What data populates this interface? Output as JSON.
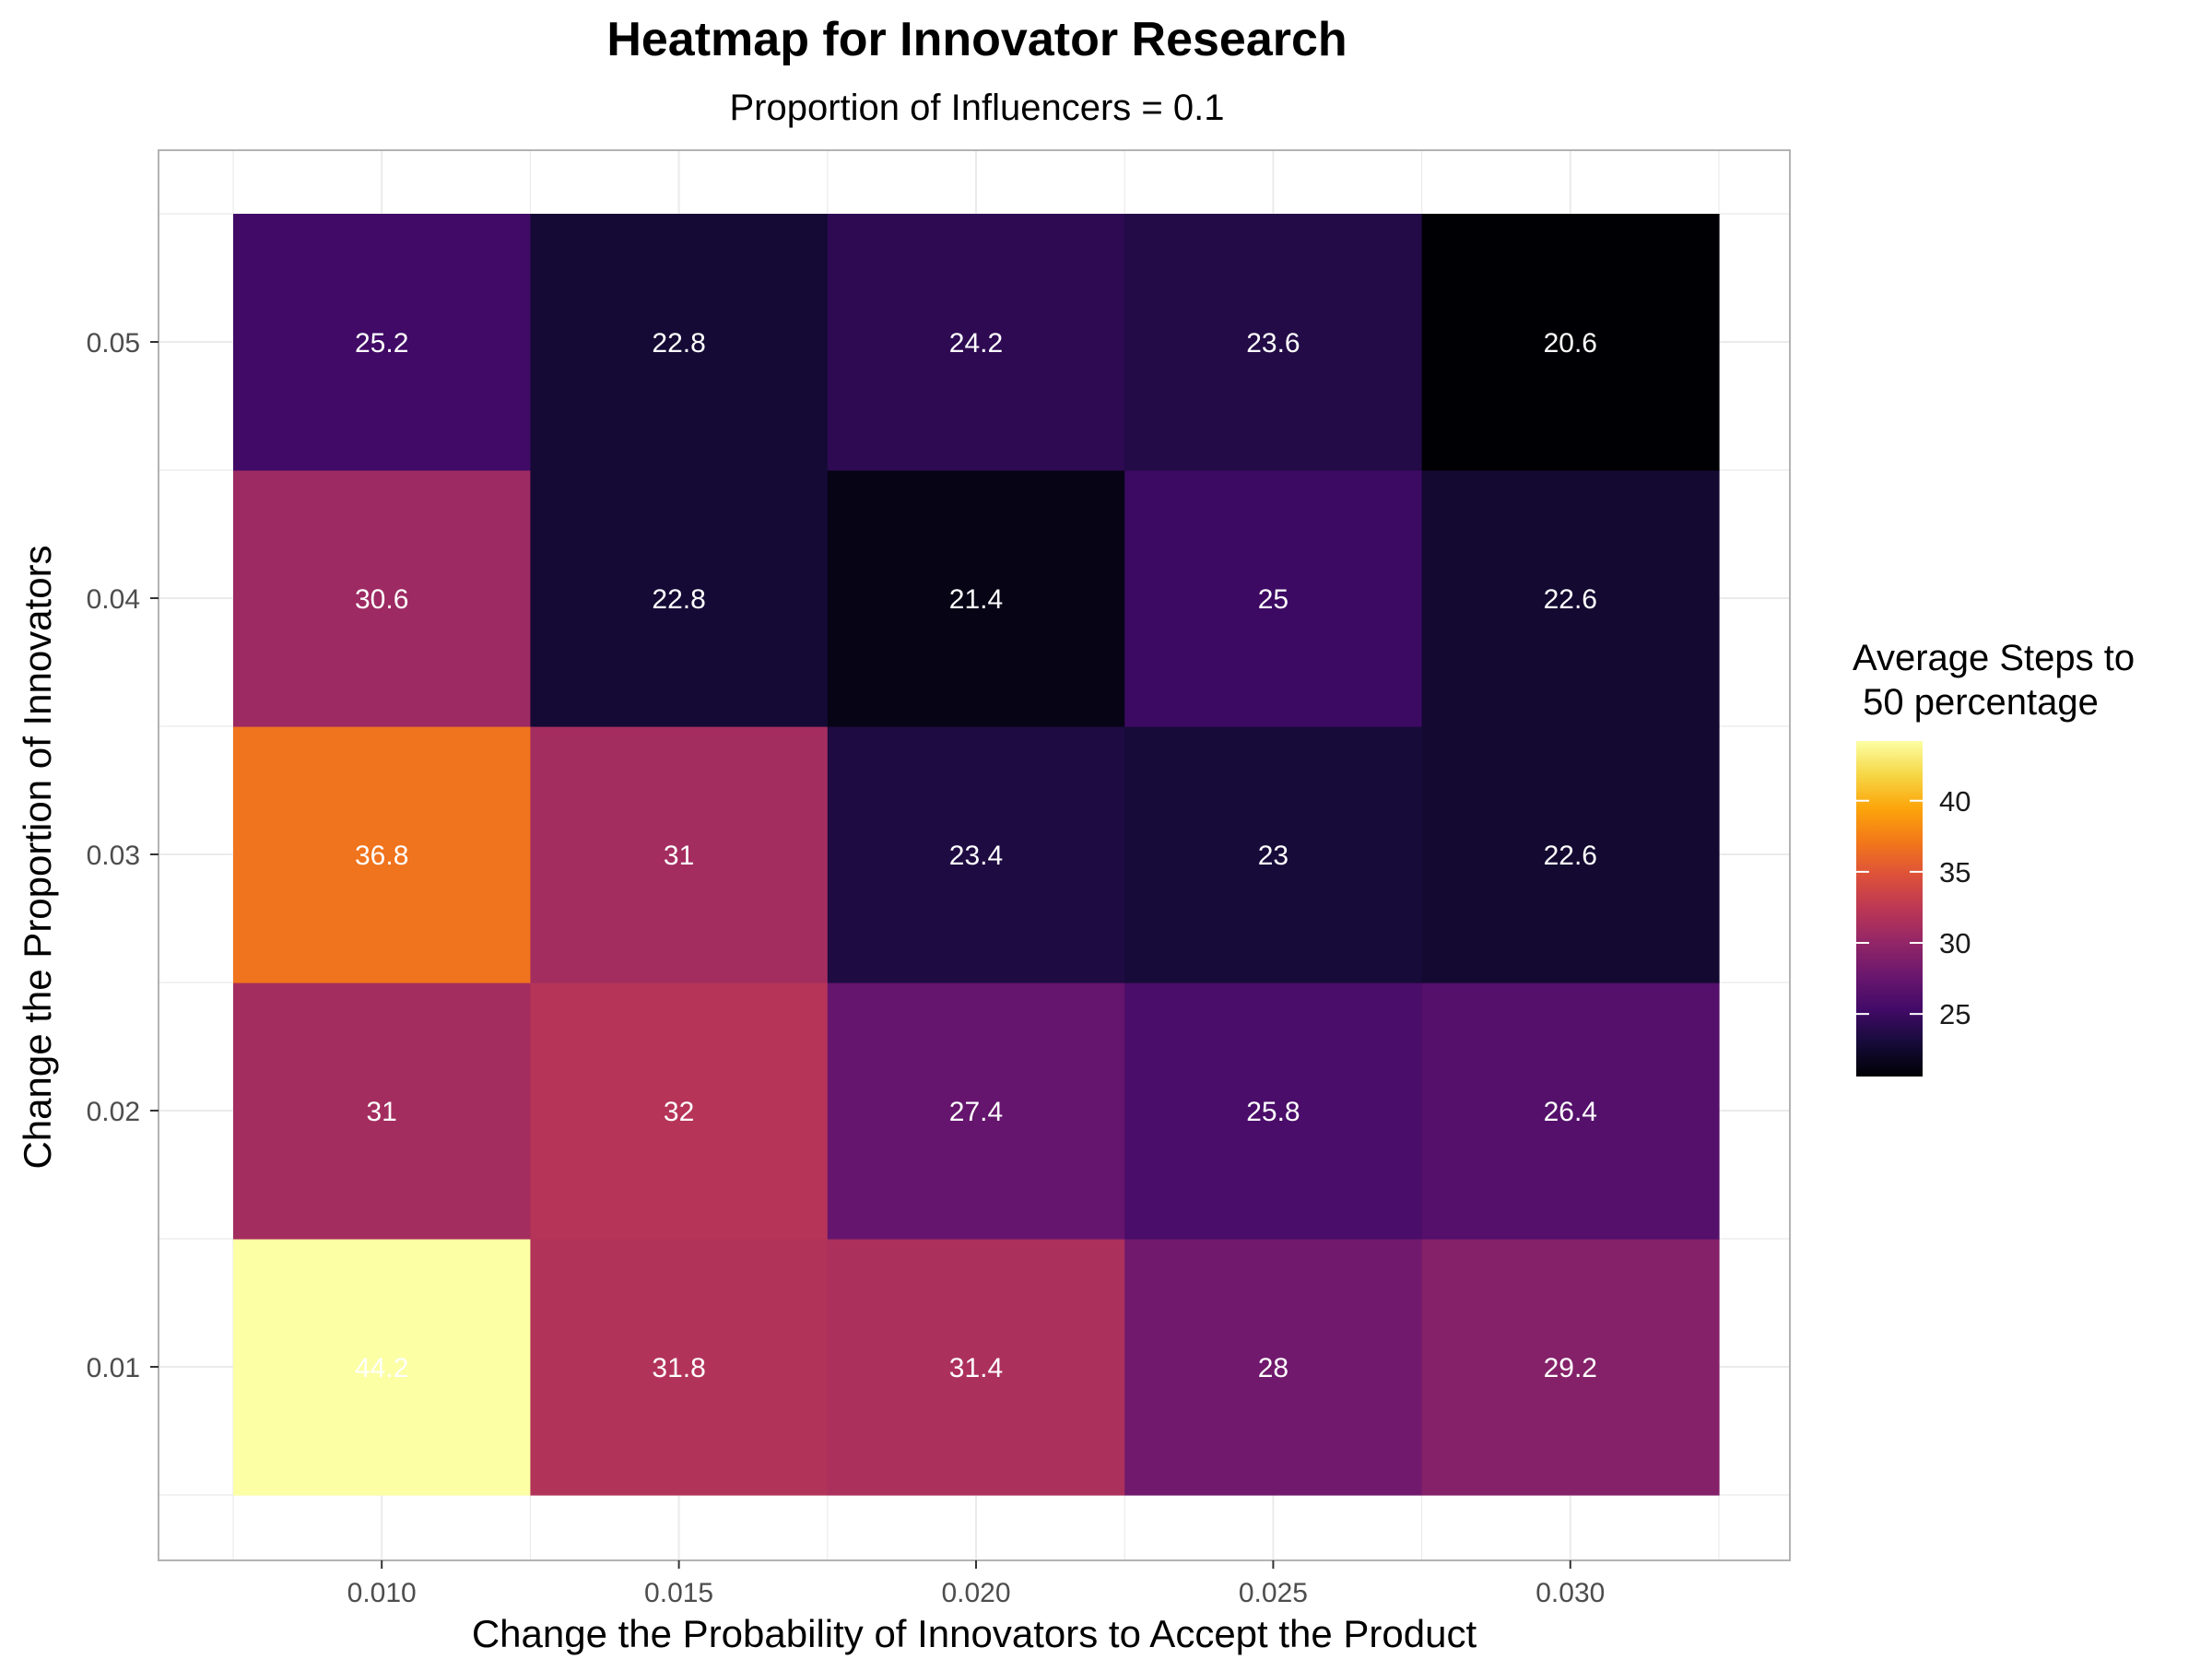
{
  "chart_data": {
    "type": "heatmap",
    "title": "Heatmap for Innovator Research",
    "subtitle": "Proportion of Influencers = 0.1",
    "xlabel": "Change the Probability of Innovators to Accept the Product",
    "ylabel": "Change the Proportion of Innovators",
    "x_categories": [
      "0.010",
      "0.015",
      "0.020",
      "0.025",
      "0.030"
    ],
    "y_categories": [
      "0.01",
      "0.02",
      "0.03",
      "0.04",
      "0.05"
    ],
    "values": [
      [
        44.2,
        31.8,
        31.4,
        28,
        29.2
      ],
      [
        31,
        32,
        27.4,
        25.8,
        26.4
      ],
      [
        36.8,
        31,
        23.4,
        23,
        22.6
      ],
      [
        30.6,
        22.8,
        21.4,
        25,
        22.6
      ],
      [
        25.2,
        22.8,
        24.2,
        23.6,
        20.6
      ]
    ],
    "value_labels": [
      [
        "44.2",
        "31.8",
        "31.4",
        "28",
        "29.2"
      ],
      [
        "31",
        "32",
        "27.4",
        "25.8",
        "26.4"
      ],
      [
        "36.8",
        "31",
        "23.4",
        "23",
        "22.6"
      ],
      [
        "30.6",
        "22.8",
        "21.4",
        "25",
        "22.6"
      ],
      [
        "25.2",
        "22.8",
        "24.2",
        "23.6",
        "20.6"
      ]
    ],
    "legend": {
      "title_lines": [
        "Average Steps to",
        " 50 percentage"
      ],
      "ticks": [
        "25",
        "30",
        "35",
        "40"
      ],
      "tick_values": [
        25,
        30,
        35,
        40
      ],
      "range": [
        20.6,
        44.2
      ],
      "placement": "right"
    },
    "colorscale": "inferno",
    "grid": true
  },
  "colors": {
    "grid": "#ebebeb",
    "panel_border": "#b3b3b3",
    "cell_text": "#ffffff"
  }
}
